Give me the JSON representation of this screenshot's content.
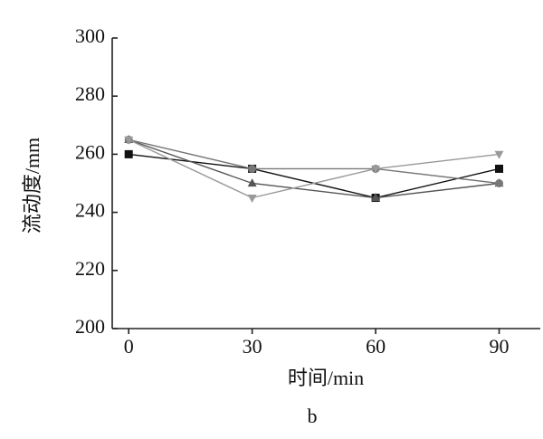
{
  "chart_data": {
    "type": "line",
    "x_label": "时间/min",
    "y_label": "流动度/mm",
    "caption": "b",
    "x": [
      0,
      30,
      60,
      90
    ],
    "series": [
      {
        "color": "#111111",
        "marker": "square",
        "values": [
          260,
          255,
          245,
          255
        ]
      },
      {
        "color": "#555555",
        "marker": "triangle-up",
        "values": [
          265,
          250,
          245,
          250
        ]
      },
      {
        "color": "#777777",
        "marker": "circle",
        "values": [
          265,
          255,
          255,
          250
        ]
      },
      {
        "color": "#999999",
        "marker": "triangle-down",
        "values": [
          265,
          245,
          255,
          260
        ]
      }
    ],
    "xlim": [
      -4,
      100
    ],
    "xticks": [
      0,
      30,
      60,
      90
    ],
    "ylim": [
      200,
      300
    ],
    "yticks": [
      200,
      220,
      240,
      260,
      280,
      300
    ]
  }
}
